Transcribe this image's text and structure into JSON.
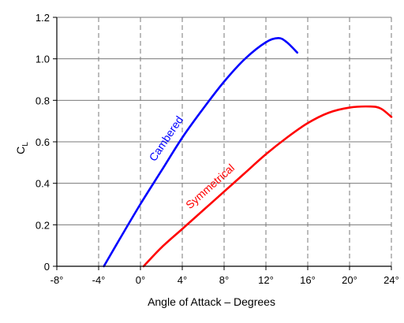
{
  "chart_data": {
    "type": "line",
    "title": "",
    "xlabel": "Angle of Attack – Degrees",
    "ylabel": {
      "main": "C",
      "sub": "L"
    },
    "xlim": [
      -8,
      24
    ],
    "ylim": [
      0,
      1.2
    ],
    "xticks": [
      -8,
      -4,
      0,
      4,
      8,
      12,
      16,
      20,
      24
    ],
    "xtick_labels": [
      "-8°",
      "-4°",
      "0°",
      "4°",
      "8°",
      "12°",
      "16°",
      "20°",
      "24°"
    ],
    "yticks": [
      0,
      0.2,
      0.4,
      0.6,
      0.8,
      1.0,
      1.2
    ],
    "ytick_labels": [
      "0",
      "0.2",
      "0.4",
      "0.6",
      "0.8",
      "1.0",
      "1.2"
    ],
    "grid": {
      "vertical": "dashed",
      "horizontal": "solid"
    },
    "series": [
      {
        "name": "Cambered",
        "color": "#0000ff",
        "x": [
          -3.5,
          -2,
          0,
          2,
          4,
          6,
          8,
          10,
          12,
          13.2,
          14,
          15
        ],
        "y": [
          0,
          0.13,
          0.3,
          0.46,
          0.62,
          0.76,
          0.89,
          1.0,
          1.08,
          1.1,
          1.08,
          1.03
        ]
      },
      {
        "name": "Symmetrical",
        "color": "#ff0000",
        "x": [
          0.3,
          2,
          4,
          6,
          8,
          10,
          12,
          14,
          16,
          18,
          20,
          22,
          23,
          24
        ],
        "y": [
          0,
          0.09,
          0.18,
          0.27,
          0.36,
          0.45,
          0.54,
          0.62,
          0.69,
          0.74,
          0.765,
          0.77,
          0.76,
          0.72
        ]
      }
    ],
    "annotations": [
      {
        "text": "Cambered",
        "series": 0
      },
      {
        "text": "Symmetrical",
        "series": 1
      }
    ]
  }
}
